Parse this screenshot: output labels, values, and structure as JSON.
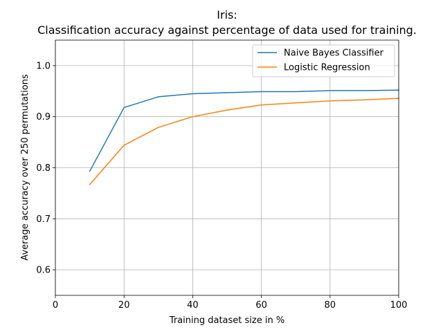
{
  "chart_data": {
    "type": "line",
    "title": "Iris:",
    "subtitle": "Classification accuracy against percentage of data used for training.",
    "xlabel": "Training dataset size in %",
    "ylabel": "Average accuracy over 250 permutations",
    "xlim": [
      0,
      100
    ],
    "ylim": [
      0.55,
      1.05
    ],
    "x_ticks": [
      0,
      20,
      40,
      60,
      80,
      100
    ],
    "y_ticks": [
      0.6,
      0.7,
      0.8,
      0.9,
      1.0
    ],
    "x_tick_labels": [
      "0",
      "20",
      "40",
      "60",
      "80",
      "100"
    ],
    "y_tick_labels": [
      "0.6",
      "0.7",
      "0.8",
      "0.9",
      "1.0"
    ],
    "grid": true,
    "legend_position": "top-right",
    "x": [
      10,
      20,
      30,
      40,
      50,
      60,
      70,
      80,
      90,
      100
    ],
    "series": [
      {
        "name": "Naive Bayes Classifier",
        "color": "#1f77b4",
        "values": [
          0.793,
          0.918,
          0.939,
          0.945,
          0.947,
          0.949,
          0.949,
          0.951,
          0.951,
          0.952
        ]
      },
      {
        "name": "Logistic Regression",
        "color": "#ff7f0e",
        "values": [
          0.767,
          0.844,
          0.879,
          0.9,
          0.913,
          0.923,
          0.927,
          0.931,
          0.933,
          0.936
        ]
      }
    ]
  }
}
